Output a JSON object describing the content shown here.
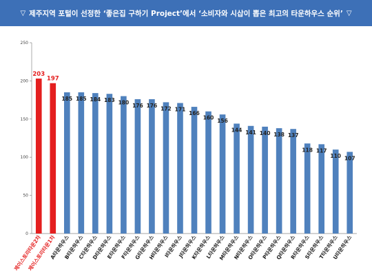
{
  "header": {
    "left_mark": "▽",
    "title": "제주지역 포털이 선정한 ‘좋은집 구하기 Project’에서 ‘소비자와 시삽이 뽑은 최고의 타운하우스 순위’",
    "right_mark": "▽"
  },
  "chart_data": {
    "type": "bar",
    "categories": [
      "제이스토리타운2차",
      "제이스토리타운1차",
      "A타운하우스",
      "B타운하우스",
      "C타운하우스",
      "D타운하우스",
      "E타운하우스",
      "F타운하우스",
      "G타운하우스",
      "H타운하우스",
      "I타운하우스",
      "J타운하우스",
      "K타운하우스",
      "L타운하우스",
      "M타운하우스",
      "N타운하우스",
      "O타운하우스",
      "P타운하우스",
      "Q타운하우스",
      "R타운하우스",
      "S타운하우스",
      "T타운하우스",
      "U타운하우스"
    ],
    "values": [
      203,
      197,
      185,
      185,
      184,
      183,
      180,
      176,
      176,
      172,
      171,
      166,
      160,
      156,
      144,
      141,
      140,
      138,
      137,
      118,
      117,
      110,
      107
    ],
    "highlight_count": 2,
    "ylim": [
      0,
      250
    ],
    "yticks": [
      0,
      50,
      100,
      150,
      200,
      250
    ],
    "grid": false,
    "colors": {
      "bar": "#4f81bd",
      "highlight_bar": "#e41f1f",
      "highlight_text": "#e41f1f",
      "header_bg": "#3d70b7"
    }
  }
}
